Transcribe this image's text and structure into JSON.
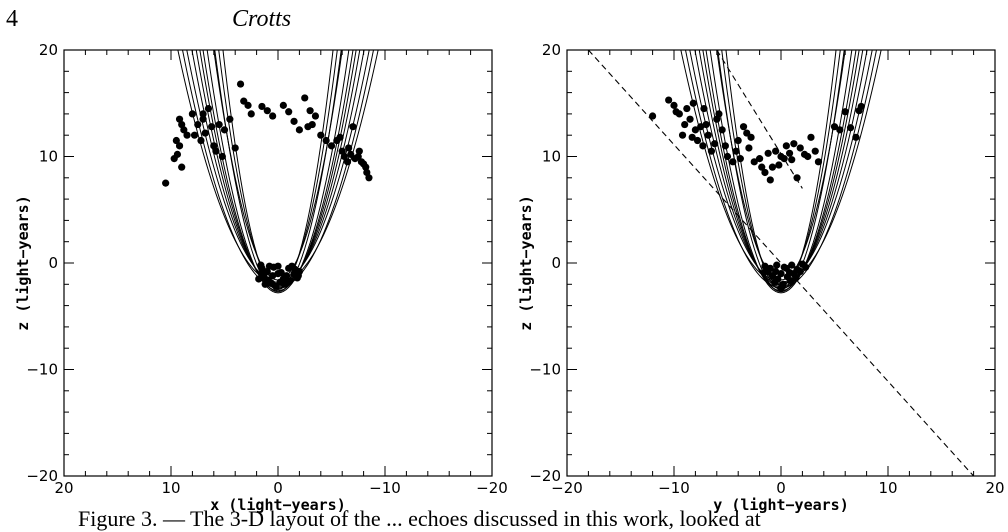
{
  "page": {
    "page_number": "4",
    "running_head": "Crotts",
    "caption": "Figure 3. — The 3-D layout of the ... echoes discussed in this work, looked at"
  },
  "chart_data": [
    {
      "type": "scatter",
      "xlabel": "x (light−years)",
      "ylabel": "z (light−years)",
      "xlim": [
        20,
        -20
      ],
      "ylim": [
        -20,
        20
      ],
      "x_reversed": true,
      "x_ticks": [
        20,
        10,
        0,
        -10,
        -20
      ],
      "y_ticks": [
        20,
        10,
        0,
        -10,
        -20
      ],
      "x_tick_labels": [
        "20",
        "10",
        "0",
        "−10",
        "−20"
      ],
      "y_tick_labels": [
        "20",
        "10",
        "0",
        "−10",
        "−20"
      ],
      "parabola_vertices": [
        -1.8,
        -2.0,
        -2.2,
        -2.4,
        -2.6,
        -2.8,
        -1.6,
        -2.1,
        -2.5,
        -1.9,
        -2.3,
        -2.7
      ],
      "parabola_scales": [
        0.3,
        0.34,
        0.38,
        0.42,
        0.46,
        0.52,
        0.6,
        0.72,
        0.85,
        0.25,
        0.28,
        0.65
      ],
      "dashed_lines": [],
      "points": [
        [
          10.5,
          7.5
        ],
        [
          9.5,
          11.5
        ],
        [
          9.7,
          9.8
        ],
        [
          9.4,
          10.2
        ],
        [
          9.0,
          9.0
        ],
        [
          9.2,
          11.0
        ],
        [
          8.8,
          12.5
        ],
        [
          9.0,
          13.0
        ],
        [
          8.0,
          14.0
        ],
        [
          7.5,
          13.0
        ],
        [
          7.8,
          12.0
        ],
        [
          7.2,
          11.5
        ],
        [
          7.0,
          13.5
        ],
        [
          6.5,
          14.5
        ],
        [
          6.8,
          12.2
        ],
        [
          6.2,
          12.8
        ],
        [
          6.0,
          11.0
        ],
        [
          5.5,
          13.0
        ],
        [
          5.0,
          12.5
        ],
        [
          5.8,
          10.5
        ],
        [
          5.2,
          10.0
        ],
        [
          4.5,
          13.5
        ],
        [
          3.5,
          16.8
        ],
        [
          3.2,
          15.2
        ],
        [
          2.5,
          14.0
        ],
        [
          1.5,
          14.7
        ],
        [
          1.0,
          14.3
        ],
        [
          0.5,
          13.8
        ],
        [
          -0.5,
          14.8
        ],
        [
          -1.0,
          14.2
        ],
        [
          -1.5,
          13.3
        ],
        [
          -2.0,
          12.5
        ],
        [
          -2.5,
          15.5
        ],
        [
          -3.0,
          14.3
        ],
        [
          -3.2,
          13.0
        ],
        [
          -2.8,
          12.8
        ],
        [
          -3.5,
          13.8
        ],
        [
          -4.0,
          12.0
        ],
        [
          -4.5,
          11.5
        ],
        [
          -5.0,
          11.0
        ],
        [
          -5.5,
          11.5
        ],
        [
          -6.0,
          10.5
        ],
        [
          -6.2,
          10.0
        ],
        [
          -6.5,
          9.5
        ],
        [
          -6.8,
          10.2
        ],
        [
          -7.0,
          12.8
        ],
        [
          -7.2,
          9.8
        ],
        [
          -7.5,
          10.0
        ],
        [
          -7.8,
          9.5
        ],
        [
          -8.0,
          9.3
        ],
        [
          -8.3,
          8.5
        ],
        [
          -8.5,
          8.0
        ],
        [
          -8.2,
          9.0
        ],
        [
          -7.6,
          10.5
        ],
        [
          -6.6,
          10.8
        ],
        [
          -5.8,
          11.8
        ],
        [
          8.5,
          12.0
        ],
        [
          9.2,
          13.5
        ],
        [
          7.0,
          14.0
        ],
        [
          4.0,
          10.8
        ],
        [
          2.8,
          14.8
        ],
        [
          1.5,
          -0.5
        ],
        [
          1.0,
          -0.8
        ],
        [
          0.5,
          -1.2
        ],
        [
          0.0,
          -1.0
        ],
        [
          -0.5,
          -1.5
        ],
        [
          -1.0,
          -0.5
        ],
        [
          -1.5,
          -1.0
        ],
        [
          -2.0,
          -0.8
        ],
        [
          1.8,
          -1.5
        ],
        [
          1.2,
          -2.0
        ],
        [
          0.2,
          -2.2
        ],
        [
          -0.2,
          -1.8
        ],
        [
          -0.8,
          -1.2
        ],
        [
          -1.3,
          -0.3
        ],
        [
          -1.8,
          -1.4
        ],
        [
          0.8,
          -0.3
        ],
        [
          1.5,
          -1.0
        ],
        [
          0.4,
          -0.4
        ],
        [
          -0.6,
          -2.0
        ],
        [
          -1.1,
          -1.7
        ],
        [
          0.9,
          -1.6
        ],
        [
          1.6,
          -0.2
        ],
        [
          -1.6,
          -0.6
        ],
        [
          0.0,
          -0.3
        ],
        [
          -0.3,
          -0.9
        ],
        [
          0.6,
          -1.9
        ],
        [
          -1.9,
          -1.2
        ],
        [
          1.3,
          -1.3
        ]
      ]
    },
    {
      "type": "scatter",
      "xlabel": "y (light−years)",
      "ylabel": "z (light−years)",
      "xlim": [
        -20,
        20
      ],
      "ylim": [
        -20,
        20
      ],
      "x_reversed": false,
      "x_ticks": [
        -20,
        -10,
        0,
        10,
        20
      ],
      "y_ticks": [
        20,
        10,
        0,
        -10,
        -20
      ],
      "x_tick_labels": [
        "−20",
        "−10",
        "0",
        "10",
        "20"
      ],
      "y_tick_labels": [
        "20",
        "10",
        "0",
        "−10",
        "−20"
      ],
      "parabola_vertices": [
        -1.8,
        -2.0,
        -2.2,
        -2.4,
        -2.6,
        -2.8,
        -1.6,
        -2.1,
        -2.5,
        -1.9,
        -2.3,
        -2.7
      ],
      "parabola_scales": [
        0.3,
        0.34,
        0.38,
        0.42,
        0.46,
        0.52,
        0.6,
        0.72,
        0.85,
        0.25,
        0.28,
        0.65
      ],
      "dashed_lines": [
        [
          [
            -18.0,
            20.0
          ],
          [
            18.0,
            -20.0
          ]
        ],
        [
          [
            -6.0,
            20.0
          ],
          [
            2.0,
            7.0
          ]
        ]
      ],
      "points": [
        [
          -12.0,
          13.8
        ],
        [
          -10.5,
          15.3
        ],
        [
          -10.0,
          14.8
        ],
        [
          -9.5,
          14.0
        ],
        [
          -9.0,
          13.0
        ],
        [
          -9.2,
          12.0
        ],
        [
          -8.8,
          14.5
        ],
        [
          -8.5,
          13.5
        ],
        [
          -8.0,
          12.5
        ],
        [
          -8.3,
          11.8
        ],
        [
          -7.5,
          12.8
        ],
        [
          -7.8,
          11.5
        ],
        [
          -7.0,
          13.0
        ],
        [
          -7.2,
          14.5
        ],
        [
          -6.8,
          12.0
        ],
        [
          -6.5,
          10.5
        ],
        [
          -6.2,
          11.2
        ],
        [
          -6.0,
          13.5
        ],
        [
          -5.5,
          12.5
        ],
        [
          -5.2,
          11.0
        ],
        [
          -5.0,
          10.0
        ],
        [
          -4.5,
          9.5
        ],
        [
          -4.2,
          10.5
        ],
        [
          -3.8,
          9.8
        ],
        [
          -3.5,
          12.8
        ],
        [
          -3.2,
          12.2
        ],
        [
          -3.0,
          10.8
        ],
        [
          -2.5,
          9.5
        ],
        [
          -2.0,
          9.8
        ],
        [
          -1.8,
          9.0
        ],
        [
          -1.5,
          8.5
        ],
        [
          -1.2,
          10.3
        ],
        [
          -1.0,
          7.8
        ],
        [
          -0.8,
          9.0
        ],
        [
          -0.5,
          10.5
        ],
        [
          0.0,
          10.0
        ],
        [
          0.3,
          9.8
        ],
        [
          0.5,
          11.0
        ],
        [
          0.8,
          10.3
        ],
        [
          1.0,
          9.7
        ],
        [
          1.2,
          11.2
        ],
        [
          1.5,
          8.0
        ],
        [
          1.8,
          10.8
        ],
        [
          2.2,
          10.2
        ],
        [
          2.8,
          11.8
        ],
        [
          3.2,
          10.5
        ],
        [
          3.5,
          9.5
        ],
        [
          2.5,
          10.0
        ],
        [
          5.0,
          12.8
        ],
        [
          5.5,
          12.5
        ],
        [
          6.0,
          14.2
        ],
        [
          6.5,
          12.7
        ],
        [
          7.0,
          11.8
        ],
        [
          7.3,
          14.3
        ],
        [
          7.5,
          14.7
        ],
        [
          -9.8,
          14.2
        ],
        [
          -8.2,
          15.0
        ],
        [
          -7.3,
          11.0
        ],
        [
          -5.8,
          14.0
        ],
        [
          -4.0,
          11.5
        ],
        [
          -2.8,
          11.8
        ],
        [
          -0.2,
          9.2
        ],
        [
          -1.5,
          -0.3
        ],
        [
          -1.0,
          -0.5
        ],
        [
          -0.5,
          -0.8
        ],
        [
          0.0,
          -1.0
        ],
        [
          0.5,
          -0.5
        ],
        [
          1.0,
          -0.2
        ],
        [
          1.5,
          -0.6
        ],
        [
          2.0,
          -0.1
        ],
        [
          -0.8,
          -1.2
        ],
        [
          -0.3,
          -1.5
        ],
        [
          0.2,
          -2.0
        ],
        [
          0.6,
          -1.3
        ],
        [
          1.2,
          -1.0
        ],
        [
          1.8,
          -0.8
        ],
        [
          -1.2,
          -0.8
        ],
        [
          0.0,
          -2.4
        ],
        [
          0.8,
          -0.9
        ],
        [
          -0.4,
          -0.2
        ],
        [
          0.3,
          -0.4
        ],
        [
          1.4,
          -1.4
        ],
        [
          -0.6,
          -1.8
        ],
        [
          2.3,
          -0.4
        ],
        [
          0.9,
          -1.7
        ],
        [
          -1.6,
          -0.9
        ]
      ]
    }
  ]
}
